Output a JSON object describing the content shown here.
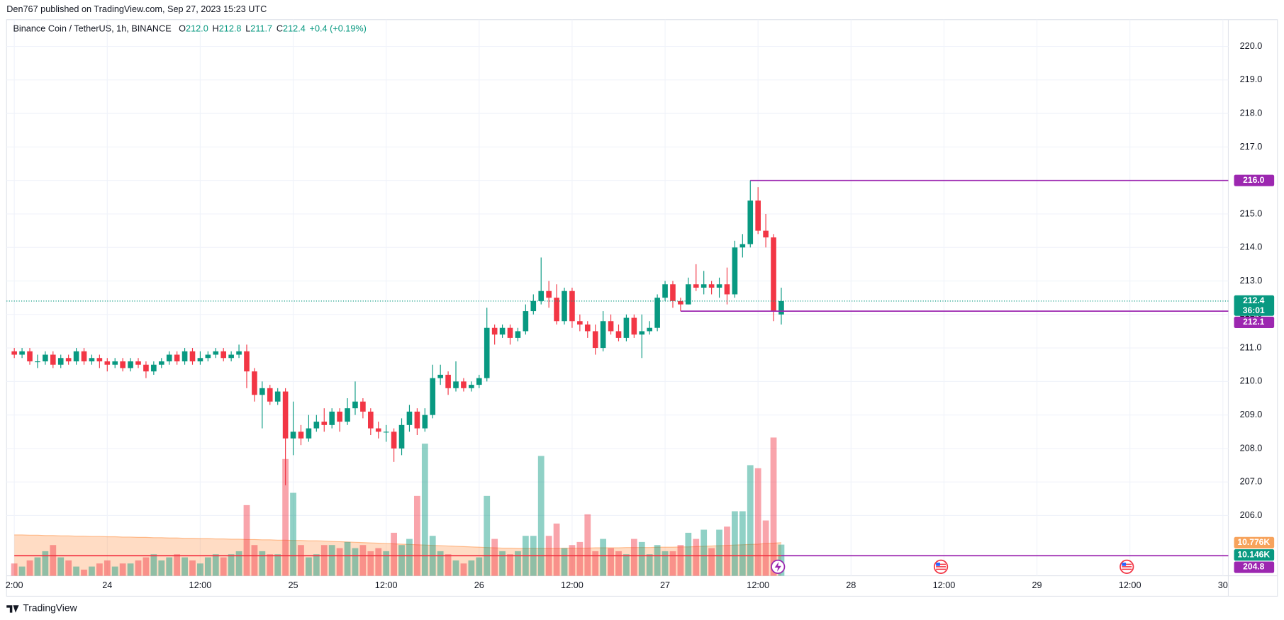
{
  "header": {
    "published": "Den767 published on TradingView.com, Sep 27, 2023 15:23 UTC"
  },
  "footer": {
    "brand": "TradingView"
  },
  "chart_data": {
    "type": "candlestick",
    "legend": {
      "symbol": "Binance Coin / TetherUS, 1h, BINANCE",
      "items": [
        {
          "key": "O",
          "value": "212.0"
        },
        {
          "key": "H",
          "value": "212.8"
        },
        {
          "key": "L",
          "value": "211.7"
        },
        {
          "key": "C",
          "value": "212.4"
        }
      ],
      "change": "+0.4 (+0.19%)"
    },
    "up_color": "#089981",
    "down_color": "#f23645",
    "open": [
      210.9,
      210.8,
      210.9,
      210.6,
      210.6,
      210.8,
      210.5,
      210.7,
      210.6,
      210.9,
      210.6,
      210.7,
      210.6,
      210.5,
      210.6,
      210.4,
      210.6,
      210.5,
      210.3,
      210.5,
      210.6,
      210.8,
      210.6,
      210.9,
      210.6,
      210.7,
      210.8,
      210.9,
      210.7,
      210.8,
      210.9,
      210.3,
      209.6,
      209.8,
      209.4,
      209.7,
      208.3,
      208.5,
      208.3,
      208.6,
      208.8,
      208.7,
      209.1,
      208.8,
      209.2,
      209.4,
      209.1,
      208.6,
      208.5,
      208.5,
      208.0,
      208.7,
      209.1,
      208.6,
      209.0,
      210.1,
      210.2,
      209.8,
      210.0,
      209.8,
      209.9,
      210.1,
      211.6,
      211.4,
      211.6,
      211.3,
      211.5,
      212.1,
      212.4,
      212.7,
      212.5,
      211.8,
      212.7,
      211.8,
      211.7,
      211.5,
      211.0,
      211.8,
      211.5,
      211.3,
      211.9,
      211.4,
      211.5,
      211.6,
      212.5,
      212.9,
      212.4,
      212.3,
      212.9,
      212.8,
      212.9,
      212.8,
      212.9,
      212.6,
      214.0,
      214.1,
      215.4,
      214.5,
      214.3,
      212.0
    ],
    "high": [
      211.0,
      211.0,
      211.0,
      210.8,
      210.9,
      210.9,
      210.8,
      210.8,
      211.0,
      211.0,
      210.8,
      210.8,
      210.7,
      210.7,
      210.7,
      210.7,
      210.7,
      210.6,
      210.6,
      210.7,
      210.9,
      210.9,
      211.0,
      211.0,
      210.9,
      210.9,
      211.0,
      211.0,
      210.9,
      211.1,
      211.1,
      210.4,
      210.0,
      209.9,
      209.8,
      209.8,
      209.4,
      208.7,
      209.0,
      209.0,
      209.2,
      209.2,
      209.2,
      209.5,
      210.0,
      209.5,
      209.2,
      208.8,
      208.7,
      208.6,
      208.9,
      209.3,
      209.2,
      209.2,
      210.5,
      210.5,
      210.3,
      210.6,
      210.1,
      210.0,
      210.2,
      212.2,
      211.7,
      211.7,
      211.7,
      211.6,
      212.3,
      212.6,
      213.7,
      213.0,
      212.9,
      212.8,
      212.8,
      212.0,
      211.8,
      211.7,
      212.1,
      212.0,
      211.7,
      212.0,
      212.0,
      212.0,
      211.8,
      212.6,
      213.0,
      213.0,
      212.5,
      213.1,
      213.5,
      213.3,
      213.0,
      213.1,
      213.4,
      214.2,
      214.4,
      216.0,
      215.8,
      215.0,
      214.4,
      212.8
    ],
    "low": [
      210.7,
      210.7,
      210.5,
      210.4,
      210.5,
      210.4,
      210.4,
      210.5,
      210.5,
      210.5,
      210.5,
      210.4,
      210.3,
      210.4,
      210.3,
      210.3,
      210.4,
      210.1,
      210.2,
      210.4,
      210.5,
      210.5,
      210.5,
      210.5,
      210.5,
      210.6,
      210.7,
      210.6,
      210.6,
      210.7,
      209.8,
      209.4,
      208.6,
      209.3,
      209.3,
      206.9,
      207.8,
      208.1,
      208.2,
      208.5,
      208.5,
      208.6,
      208.5,
      208.7,
      209.0,
      208.9,
      208.4,
      208.3,
      208.2,
      207.6,
      207.8,
      208.5,
      208.4,
      208.5,
      208.9,
      209.9,
      209.6,
      209.7,
      209.7,
      209.7,
      209.8,
      210.0,
      211.1,
      211.3,
      211.1,
      211.2,
      211.4,
      212.0,
      212.3,
      212.2,
      211.7,
      211.7,
      211.6,
      211.5,
      211.3,
      210.8,
      210.9,
      211.4,
      211.2,
      211.2,
      211.3,
      210.7,
      211.4,
      211.5,
      212.4,
      212.2,
      212.1,
      212.3,
      212.7,
      212.6,
      212.6,
      212.5,
      212.3,
      212.5,
      213.7,
      214.0,
      214.4,
      214.0,
      211.8,
      211.7
    ],
    "close": [
      210.8,
      210.9,
      210.6,
      210.6,
      210.8,
      210.5,
      210.7,
      210.6,
      210.9,
      210.6,
      210.7,
      210.6,
      210.5,
      210.6,
      210.4,
      210.6,
      210.5,
      210.3,
      210.5,
      210.6,
      210.8,
      210.6,
      210.9,
      210.6,
      210.7,
      210.8,
      210.9,
      210.7,
      210.8,
      210.9,
      210.3,
      209.6,
      209.8,
      209.4,
      209.7,
      208.3,
      208.5,
      208.3,
      208.6,
      208.8,
      208.7,
      209.1,
      208.8,
      209.2,
      209.4,
      209.1,
      208.6,
      208.5,
      208.5,
      208.0,
      208.7,
      209.1,
      208.6,
      209.0,
      210.1,
      210.2,
      209.8,
      210.0,
      209.8,
      209.9,
      210.1,
      211.6,
      211.4,
      211.6,
      211.3,
      211.5,
      212.1,
      212.4,
      212.7,
      212.5,
      211.8,
      212.7,
      211.8,
      211.7,
      211.5,
      211.0,
      211.8,
      211.5,
      211.3,
      211.9,
      211.4,
      211.5,
      211.6,
      212.5,
      212.9,
      212.4,
      212.3,
      212.9,
      212.8,
      212.9,
      212.8,
      212.9,
      212.6,
      214.0,
      214.1,
      215.4,
      214.5,
      214.3,
      212.1,
      212.4
    ],
    "countdown": "36:01",
    "volume": [
      4,
      3,
      5,
      6,
      8,
      10,
      6,
      5,
      3,
      2,
      3,
      4,
      5,
      3,
      4,
      4,
      5,
      6,
      7,
      5,
      6,
      7,
      6,
      5,
      4,
      6,
      7,
      6,
      7,
      8,
      23,
      10,
      8,
      7,
      7,
      38,
      27,
      10,
      6,
      7,
      10,
      10,
      9,
      11,
      9,
      10,
      8,
      9,
      8,
      14,
      10,
      12,
      26,
      43,
      13,
      8,
      7,
      5,
      4,
      5,
      6,
      26,
      12,
      8,
      7,
      8,
      13,
      13,
      39,
      13,
      17,
      9,
      10,
      11,
      20,
      8,
      12,
      9,
      8,
      7,
      12,
      11,
      7,
      10,
      8,
      8,
      10,
      14,
      12,
      15,
      9,
      15,
      16,
      21,
      21,
      36,
      35,
      18,
      45,
      10.146
    ],
    "volume_labels": {
      "last": "10.146K",
      "ma": "10.776K"
    },
    "volume_ma": [
      13.3,
      13.3,
      13.2,
      13.2,
      13.1,
      13.1,
      13.0,
      13.0,
      12.9,
      12.9,
      12.8,
      12.8,
      12.7,
      12.7,
      12.6,
      12.6,
      12.5,
      12.5,
      12.4,
      12.4,
      12.3,
      12.3,
      12.2,
      12.2,
      12.1,
      12.1,
      12.0,
      12.0,
      11.9,
      11.9,
      11.8,
      11.8,
      11.7,
      11.7,
      11.6,
      11.6,
      11.5,
      11.5,
      11.4,
      11.4,
      11.3,
      11.2,
      11.1,
      11.0,
      10.9,
      10.8,
      10.7,
      10.6,
      10.5,
      10.4,
      10.3,
      10.2,
      10.1,
      10.0,
      9.9,
      9.8,
      9.7,
      9.6,
      9.5,
      9.4,
      9.3,
      9.2,
      9.1,
      9.0,
      9.0,
      8.9,
      8.9,
      8.9,
      8.9,
      8.9,
      8.9,
      9.0,
      9.0,
      9.0,
      9.0,
      9.1,
      9.1,
      9.1,
      9.1,
      9.2,
      9.2,
      9.2,
      9.2,
      9.3,
      9.3,
      9.3,
      9.4,
      9.4,
      9.5,
      9.6,
      9.7,
      9.8,
      9.9,
      10.0,
      10.1,
      10.2,
      10.3,
      10.5,
      10.6,
      10.776
    ],
    "volume_lim": [
      0,
      181
    ],
    "levels": [
      {
        "value": 216,
        "label": "216.0",
        "color": "#9c27b0",
        "start": 95
      },
      {
        "value": 212.1,
        "color": "#9c27b0",
        "start": 86
      },
      {
        "value": 204.8,
        "color": "#f23645",
        "start": 0,
        "end": 99
      },
      {
        "value": 204.8,
        "color": "#9c27b0",
        "start": 99
      }
    ],
    "xlim": [
      -1,
      156.7
    ],
    "xticks": [
      {
        "value": 0,
        "label": "2:00"
      },
      {
        "value": 12,
        "label": "24"
      },
      {
        "value": 24,
        "label": "12:00"
      },
      {
        "value": 36,
        "label": "25"
      },
      {
        "value": 48,
        "label": "12:00"
      },
      {
        "value": 60,
        "label": "26"
      },
      {
        "value": 72,
        "label": "12:00"
      },
      {
        "value": 84,
        "label": "27"
      },
      {
        "value": 96,
        "label": "12:00"
      },
      {
        "value": 108,
        "label": "28"
      },
      {
        "value": 120,
        "label": "12:00"
      },
      {
        "value": 132,
        "label": "29"
      },
      {
        "value": 144,
        "label": "12:00"
      },
      {
        "value": 156,
        "label": "30"
      }
    ],
    "ylim": [
      204.2,
      220.8
    ],
    "yticks": [
      {
        "value": 206,
        "label": "206.0"
      },
      {
        "value": 207,
        "label": "207.0"
      },
      {
        "value": 208,
        "label": "208.0"
      },
      {
        "value": 209,
        "label": "209.0"
      },
      {
        "value": 210,
        "label": "210.0"
      },
      {
        "value": 211,
        "label": "211.0"
      },
      {
        "value": 212,
        "label": "212.0"
      },
      {
        "value": 213,
        "label": "213.0"
      },
      {
        "value": 214,
        "label": "214.0"
      },
      {
        "value": 215,
        "label": "215.0"
      },
      {
        "value": 216,
        "label": "216.0"
      },
      {
        "value": 217,
        "label": "217.0"
      },
      {
        "value": 218,
        "label": "218.0"
      },
      {
        "value": 219,
        "label": "219.0"
      },
      {
        "value": 220,
        "label": "220.0"
      }
    ],
    "grid": true
  }
}
